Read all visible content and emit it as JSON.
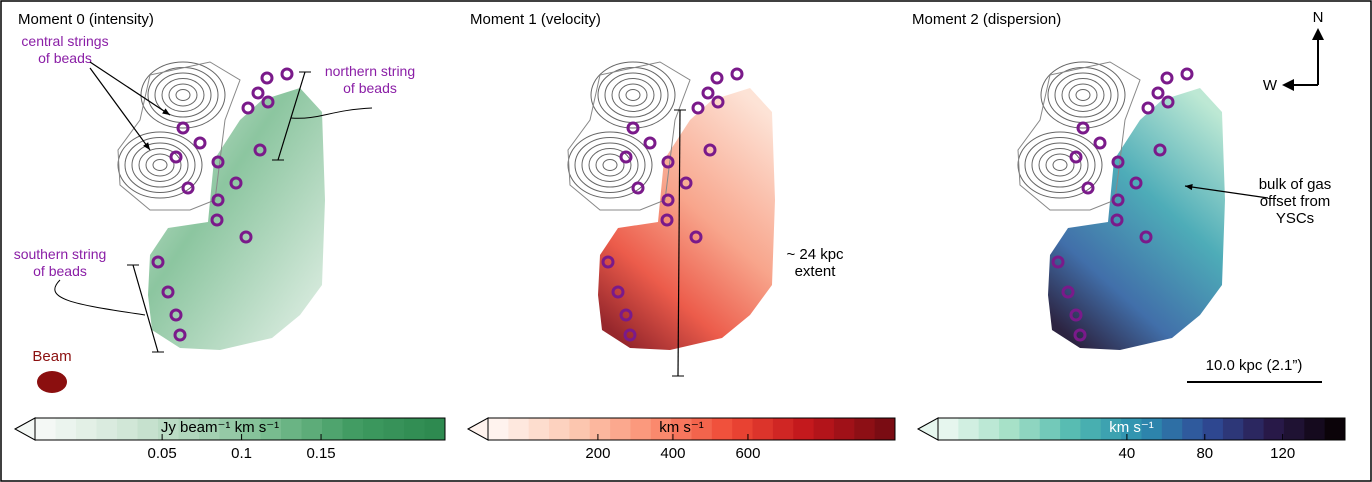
{
  "panels": [
    {
      "title": "Moment 0 (intensity)",
      "colorbar": {
        "label": "Jy beam⁻¹ km s⁻¹",
        "lim": [
          -0.03,
          0.228
        ],
        "ticks": [
          0.05,
          0.1,
          0.15
        ],
        "colors": [
          "#f4f8f5",
          "#d3e8d9",
          "#a9d3b6",
          "#72b98a",
          "#3f9a61",
          "#2e8a50"
        ]
      },
      "annotations": [
        "central strings of beads",
        "northern string of beads",
        "southern string of beads",
        "Beam"
      ]
    },
    {
      "title": "Moment 1 (velocity)",
      "colorbar": {
        "label": "km s⁻¹",
        "lim": [
          -93,
          992
        ],
        "ticks": [
          200,
          400,
          600
        ],
        "colors": [
          "#fff3ee",
          "#fcc9b2",
          "#fb9073",
          "#ef4a36",
          "#c2161c",
          "#7a0c13"
        ]
      },
      "annotations": [
        "~ 24 kpc extent"
      ]
    },
    {
      "title": "Moment 2 (dispersion)",
      "colorbar": {
        "label": "km s⁻¹",
        "lim": [
          -57,
          152
        ],
        "ticks": [
          40,
          80,
          120
        ],
        "colors": [
          "#e6f6ee",
          "#a4e0c6",
          "#4fb8b0",
          "#2d8fb0",
          "#2f4c98",
          "#2a1a4c",
          "#0b0309"
        ]
      },
      "annotations": [
        "bulk of gas offset from YSCs",
        "10.0 kpc (2.1”)",
        "N",
        "W"
      ]
    }
  ]
}
